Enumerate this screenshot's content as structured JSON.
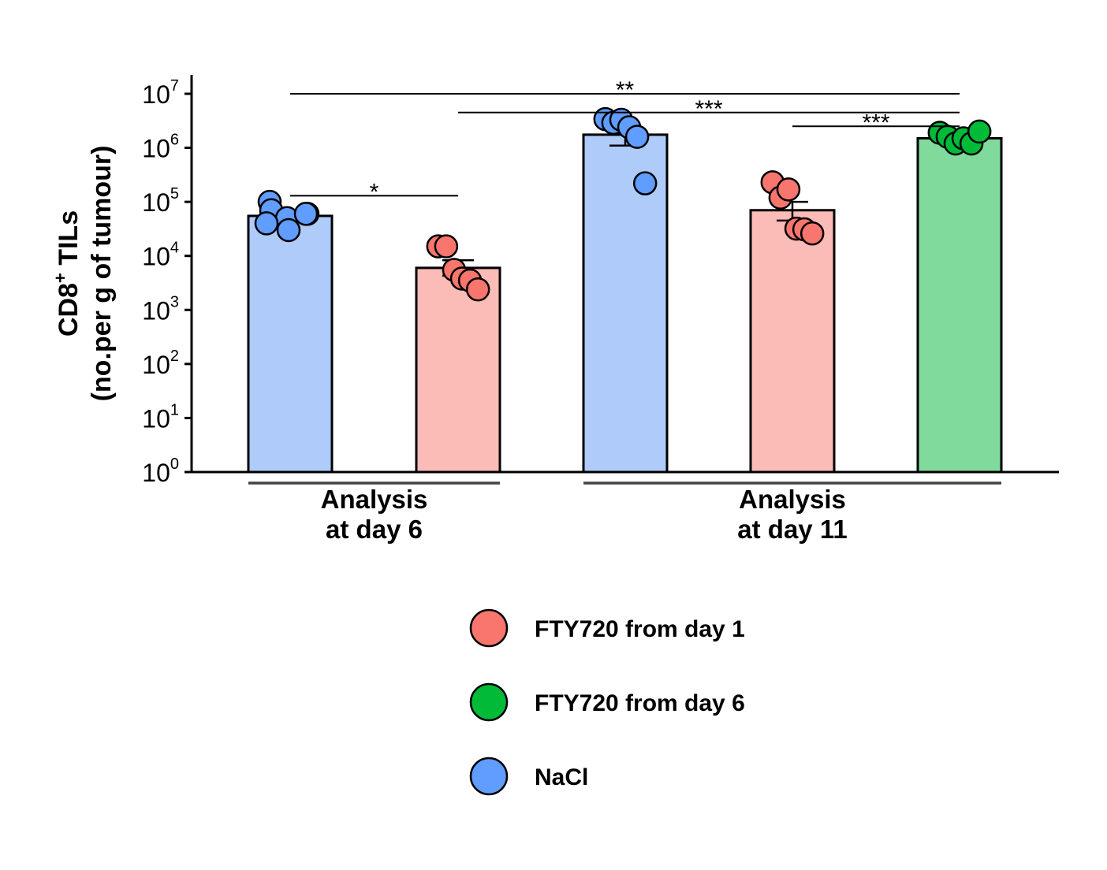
{
  "chart_data": {
    "type": "bar",
    "y_scale": "log10",
    "ylim": [
      1,
      10000000
    ],
    "ylabel_line1": "CD8",
    "ylabel_sup": "+",
    "ylabel_line1_tail": " TILs",
    "ylabel_line2": "(no.per g of tumour)",
    "y_ticks": [
      {
        "base": "10",
        "exp": "0",
        "value": 1
      },
      {
        "base": "10",
        "exp": "1",
        "value": 10
      },
      {
        "base": "10",
        "exp": "2",
        "value": 100
      },
      {
        "base": "10",
        "exp": "3",
        "value": 1000
      },
      {
        "base": "10",
        "exp": "4",
        "value": 10000
      },
      {
        "base": "10",
        "exp": "5",
        "value": 100000
      },
      {
        "base": "10",
        "exp": "6",
        "value": 1000000
      },
      {
        "base": "10",
        "exp": "7",
        "value": 10000000
      }
    ],
    "groups": [
      {
        "line1": "Analysis",
        "line2": "at day 6",
        "bars": [
          0,
          1
        ]
      },
      {
        "line1": "Analysis",
        "line2": "at day 11",
        "bars": [
          2,
          3,
          4
        ]
      }
    ],
    "bars": [
      {
        "series": "NaCl",
        "value": 55000,
        "err_low": 55000,
        "err_high": 55000,
        "points": [
          100000,
          70000,
          50000,
          40000,
          30000,
          60000,
          60000
        ]
      },
      {
        "series": "FTY720 from day 1",
        "value": 6000,
        "err_low": 4300,
        "err_high": 8300,
        "points": [
          15000,
          15000,
          5500,
          3800,
          3500,
          2400
        ]
      },
      {
        "series": "NaCl",
        "value": 1750000,
        "err_low": 1100000,
        "err_high": 2500000,
        "points": [
          3400000,
          2900000,
          3300000,
          2400000,
          1600000,
          220000
        ]
      },
      {
        "series": "FTY720 from day 1",
        "value": 70000,
        "err_low": 45000,
        "err_high": 100000,
        "points": [
          230000,
          120000,
          170000,
          32000,
          31000,
          26000
        ]
      },
      {
        "series": "FTY720 from day 6",
        "value": 1500000,
        "err_low": 1500000,
        "err_high": 1500000,
        "points": [
          1900000,
          1600000,
          1200000,
          1500000,
          1200000,
          2000000
        ]
      }
    ],
    "significance": [
      {
        "from": 0,
        "to": 1,
        "value": 130000,
        "label": "*"
      },
      {
        "from": 0,
        "to": 4,
        "value": 10000000,
        "label": "**"
      },
      {
        "from": 1,
        "to": 4,
        "value": 4500000,
        "label": "***"
      },
      {
        "from": 3,
        "to": 4,
        "value": 2500000,
        "label": "***"
      }
    ],
    "legend": {
      "position": "bottom",
      "entries": [
        {
          "label": "FTY720 from day 1",
          "color": "#F8766D"
        },
        {
          "label": "FTY720 from day 6",
          "color": "#00BA38"
        },
        {
          "label": "NaCl",
          "color": "#619CFF"
        }
      ]
    },
    "series_colors": {
      "NaCl": {
        "bar": "#AECBFA",
        "point": "#619CFF"
      },
      "FTY720 from day 1": {
        "bar": "#FBBBB6",
        "point": "#F8766D"
      },
      "FTY720 from day 6": {
        "bar": "#80DA9B",
        "point": "#00BA38"
      }
    }
  }
}
